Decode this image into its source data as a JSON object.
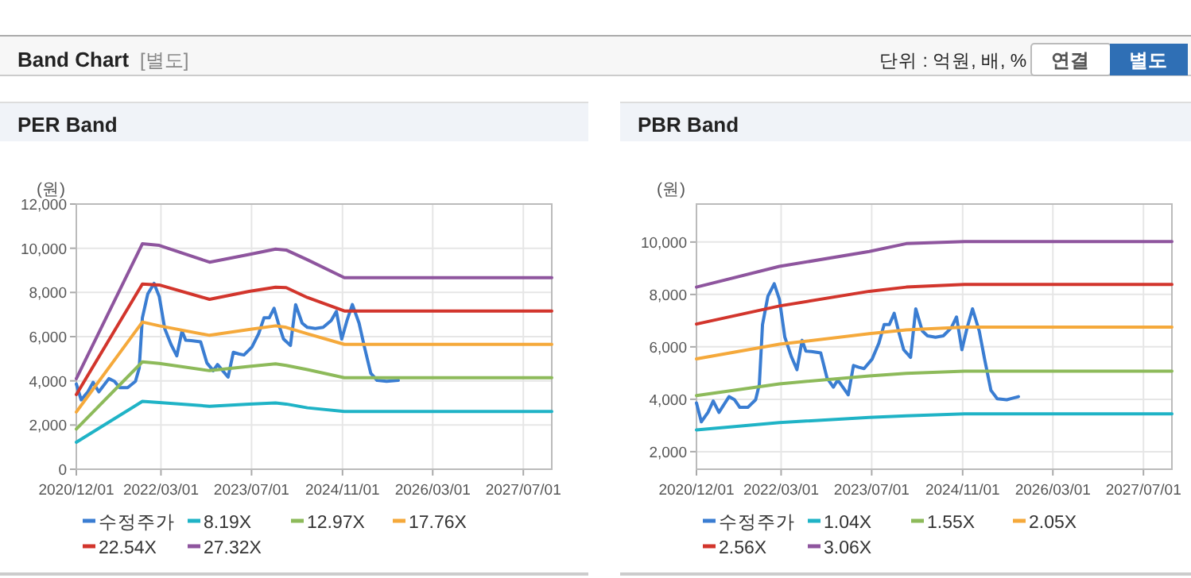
{
  "chart_data": [
    {
      "type": "line",
      "title": "PER Band",
      "ylabel": "(원)",
      "annotations": [
        "Band Chart",
        "[별도]",
        "단위 : 억원, 배, %",
        "연결",
        "별도"
      ],
      "xlim": [
        "2020-12-01",
        "2027-12-01"
      ],
      "xticks": [
        {
          "value": "2020-12-01",
          "label": "2020/12/01"
        },
        {
          "value": "2022-03-01",
          "label": "2022/03/01"
        },
        {
          "value": "2023-07-01",
          "label": "2023/07/01"
        },
        {
          "value": "2024-11-01",
          "label": "2024/11/01"
        },
        {
          "value": "2026-03-01",
          "label": "2026/03/01"
        },
        {
          "value": "2027-07-01",
          "label": "2027/07/01"
        }
      ],
      "ylim": [
        0,
        12000
      ],
      "yticks": [
        {
          "value": 0,
          "label": "0"
        },
        {
          "value": 2000,
          "label": "2,000"
        },
        {
          "value": 4000,
          "label": "4,000"
        },
        {
          "value": 6000,
          "label": "6,000"
        },
        {
          "value": 8000,
          "label": "8,000"
        },
        {
          "value": 10000,
          "label": "10,000"
        },
        {
          "value": 12000,
          "label": "12,000"
        }
      ],
      "grid": true,
      "legend": "bottom",
      "marker": "none",
      "line_style": "solid",
      "series": [
        {
          "name": "수정주가",
          "color": "#3a7dd2",
          "x": [
            "2020-12-01",
            "2020-12-27",
            "2021-02-01",
            "2021-03-01",
            "2021-04-01",
            "2021-05-25",
            "2021-06-24",
            "2021-07-22",
            "2021-09-03",
            "2021-10-15",
            "2021-11-04",
            "2021-11-21",
            "2021-12-20",
            "2022-01-23",
            "2022-02-20",
            "2022-03-21",
            "2022-04-24",
            "2022-05-25",
            "2022-06-22",
            "2022-07-12",
            "2022-08-10",
            "2022-09-30",
            "2022-11-03",
            "2022-12-07",
            "2022-12-30",
            "2023-01-27",
            "2023-02-25",
            "2023-03-25",
            "2023-04-23",
            "2023-05-21",
            "2023-07-03",
            "2023-08-08",
            "2023-09-06",
            "2023-10-04",
            "2023-10-30",
            "2023-11-22",
            "2023-12-20",
            "2024-01-26",
            "2024-02-23",
            "2024-03-29",
            "2024-04-26",
            "2024-06-08",
            "2024-07-20",
            "2024-09-01",
            "2024-09-29",
            "2024-10-28",
            "2024-11-25",
            "2024-12-24",
            "2025-01-29",
            "2025-02-27",
            "2025-04-02",
            "2025-05-06",
            "2025-06-26",
            "2025-08-28"
          ],
          "values": [
            3860,
            3140,
            3500,
            3930,
            3500,
            4100,
            3980,
            3690,
            3690,
            3980,
            4570,
            6850,
            7930,
            8410,
            7810,
            6370,
            5650,
            5130,
            6250,
            5840,
            5820,
            5770,
            4810,
            4460,
            4740,
            4460,
            4170,
            5290,
            5220,
            5170,
            5530,
            6130,
            6850,
            6850,
            7280,
            6610,
            5890,
            5600,
            7450,
            6610,
            6420,
            6370,
            6420,
            6730,
            7140,
            5890,
            6730,
            7450,
            6610,
            5530,
            4340,
            4020,
            3980,
            4020
          ]
        },
        {
          "name": "8.19X",
          "color": "#1fb3c6",
          "x": [
            "2020-12-01",
            "2021-11-21",
            "2022-02-20",
            "2022-11-17",
            "2023-06-18",
            "2023-11-07",
            "2024-01-03",
            "2024-04-26",
            "2024-11-11",
            "2027-12-01"
          ],
          "values": [
            1220,
            3070,
            3020,
            2850,
            2950,
            3000,
            2950,
            2780,
            2610,
            2610
          ]
        },
        {
          "name": "12.97X",
          "color": "#8dba5a",
          "x": [
            "2020-12-01",
            "2021-11-21",
            "2022-02-20",
            "2022-11-17",
            "2023-06-18",
            "2023-11-07",
            "2024-01-03",
            "2024-04-26",
            "2024-11-11",
            "2027-12-01"
          ],
          "values": [
            1820,
            4860,
            4790,
            4460,
            4650,
            4770,
            4700,
            4510,
            4140,
            4140
          ]
        },
        {
          "name": "17.76X",
          "color": "#f5a93b",
          "x": [
            "2020-12-01",
            "2021-11-21",
            "2022-02-20",
            "2022-11-17",
            "2023-06-18",
            "2023-11-07",
            "2024-01-03",
            "2024-04-26",
            "2024-11-11",
            "2027-12-01"
          ],
          "values": [
            2590,
            6660,
            6490,
            6060,
            6320,
            6490,
            6420,
            6130,
            5650,
            5650
          ]
        },
        {
          "name": "22.54X",
          "color": "#d2352c",
          "x": [
            "2020-12-01",
            "2021-11-21",
            "2022-02-20",
            "2022-11-17",
            "2023-06-18",
            "2023-11-07",
            "2024-01-03",
            "2024-04-26",
            "2024-11-11",
            "2027-12-01"
          ],
          "values": [
            3380,
            8380,
            8340,
            7690,
            8050,
            8240,
            8220,
            7770,
            7160,
            7160
          ]
        },
        {
          "name": "27.32X",
          "color": "#8e559e",
          "x": [
            "2020-12-01",
            "2021-11-21",
            "2022-02-20",
            "2022-11-17",
            "2023-06-18",
            "2023-11-07",
            "2024-01-03",
            "2024-04-26",
            "2024-11-11",
            "2027-12-01"
          ],
          "values": [
            4100,
            10200,
            10130,
            9370,
            9720,
            9960,
            9920,
            9480,
            8670,
            8670
          ]
        }
      ]
    },
    {
      "type": "line",
      "title": "PBR Band",
      "ylabel": "(원)",
      "xlim": [
        "2020-12-01",
        "2027-12-01"
      ],
      "xticks": [
        {
          "value": "2020-12-01",
          "label": "2020/12/01"
        },
        {
          "value": "2022-03-01",
          "label": "2022/03/01"
        },
        {
          "value": "2023-07-01",
          "label": "2023/07/01"
        },
        {
          "value": "2024-11-01",
          "label": "2024/11/01"
        },
        {
          "value": "2026-03-01",
          "label": "2026/03/01"
        },
        {
          "value": "2027-07-01",
          "label": "2027/07/01"
        }
      ],
      "ylim": [
        1330,
        11450
      ],
      "yticks": [
        {
          "value": 2000,
          "label": "2,000"
        },
        {
          "value": 4000,
          "label": "4,000"
        },
        {
          "value": 6000,
          "label": "6,000"
        },
        {
          "value": 8000,
          "label": "8,000"
        },
        {
          "value": 10000,
          "label": "10,000"
        }
      ],
      "grid": true,
      "legend": "bottom",
      "marker": "none",
      "line_style": "solid",
      "series": [
        {
          "name": "수정주가",
          "color": "#3a7dd2",
          "x": [
            "2020-12-01",
            "2020-12-27",
            "2021-02-01",
            "2021-03-01",
            "2021-04-01",
            "2021-05-25",
            "2021-06-24",
            "2021-07-22",
            "2021-09-03",
            "2021-10-15",
            "2021-11-04",
            "2021-11-21",
            "2021-12-20",
            "2022-01-23",
            "2022-02-20",
            "2022-03-21",
            "2022-04-24",
            "2022-05-25",
            "2022-06-22",
            "2022-07-12",
            "2022-08-10",
            "2022-09-30",
            "2022-11-03",
            "2022-12-07",
            "2022-12-30",
            "2023-01-27",
            "2023-02-25",
            "2023-03-25",
            "2023-04-23",
            "2023-05-21",
            "2023-07-03",
            "2023-08-08",
            "2023-09-06",
            "2023-10-04",
            "2023-10-30",
            "2023-11-22",
            "2023-12-20",
            "2024-01-26",
            "2024-02-23",
            "2024-03-29",
            "2024-04-26",
            "2024-06-08",
            "2024-07-20",
            "2024-09-01",
            "2024-09-29",
            "2024-10-28",
            "2024-11-25",
            "2024-12-24",
            "2025-01-29",
            "2025-02-27",
            "2025-04-02",
            "2025-05-06",
            "2025-06-26",
            "2025-08-28"
          ],
          "values": [
            3860,
            3140,
            3500,
            3930,
            3500,
            4100,
            3980,
            3690,
            3690,
            3980,
            4570,
            6850,
            7930,
            8410,
            7810,
            6370,
            5650,
            5130,
            6250,
            5840,
            5820,
            5770,
            4810,
            4460,
            4740,
            4460,
            4170,
            5290,
            5220,
            5170,
            5530,
            6130,
            6850,
            6850,
            7280,
            6610,
            5890,
            5600,
            7450,
            6610,
            6420,
            6370,
            6420,
            6730,
            7140,
            5890,
            6730,
            7450,
            6610,
            5530,
            4340,
            4020,
            3980,
            4100
          ]
        },
        {
          "name": "1.04X",
          "color": "#1fb3c6",
          "x": [
            "2020-12-01",
            "2022-02-20",
            "2023-06-18",
            "2024-01-03",
            "2024-11-11",
            "2027-12-01"
          ],
          "values": [
            2830,
            3110,
            3310,
            3370,
            3440,
            3440
          ]
        },
        {
          "name": "1.55X",
          "color": "#8dba5a",
          "x": [
            "2020-12-01",
            "2022-02-20",
            "2023-06-18",
            "2024-01-03",
            "2024-11-11",
            "2027-12-01"
          ],
          "values": [
            4140,
            4590,
            4890,
            4990,
            5070,
            5070
          ]
        },
        {
          "name": "2.05X",
          "color": "#f5a93b",
          "x": [
            "2020-12-01",
            "2022-02-20",
            "2023-06-18",
            "2024-01-03",
            "2024-11-11",
            "2027-12-01"
          ],
          "values": [
            5540,
            6100,
            6500,
            6650,
            6750,
            6750
          ]
        },
        {
          "name": "2.56X",
          "color": "#d2352c",
          "x": [
            "2020-12-01",
            "2022-02-20",
            "2023-06-18",
            "2024-01-03",
            "2024-11-11",
            "2027-12-01"
          ],
          "values": [
            6870,
            7560,
            8120,
            8280,
            8380,
            8380
          ]
        },
        {
          "name": "3.06X",
          "color": "#8e559e",
          "x": [
            "2020-12-01",
            "2022-02-20",
            "2023-06-18",
            "2024-01-03",
            "2024-11-11",
            "2027-12-01"
          ],
          "values": [
            8280,
            9070,
            9640,
            9940,
            10020,
            10020
          ]
        }
      ]
    }
  ]
}
